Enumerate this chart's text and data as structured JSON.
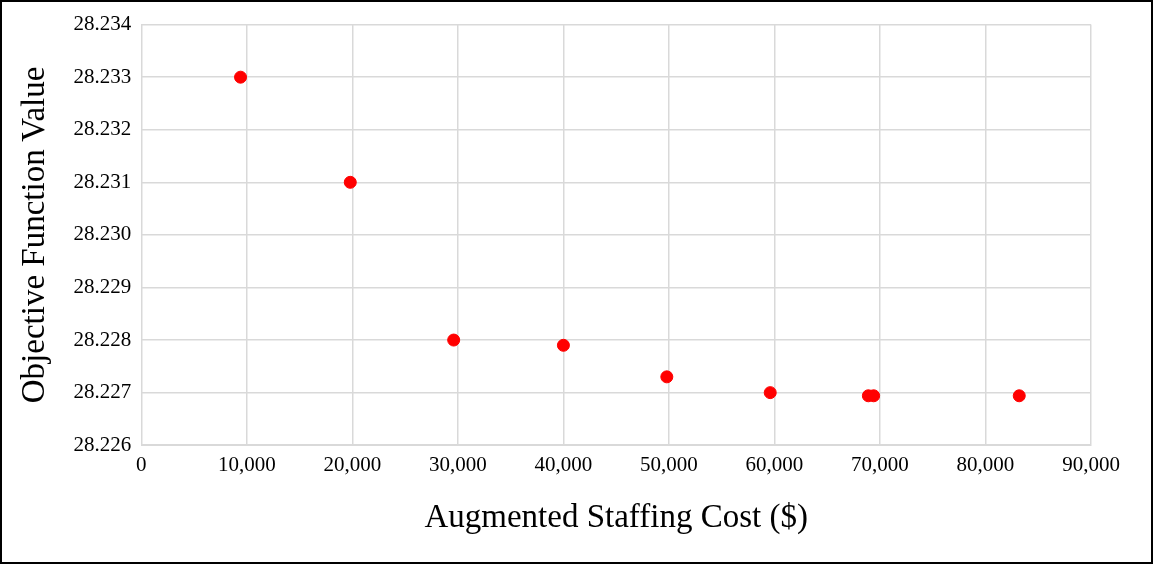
{
  "chart_data": {
    "type": "scatter",
    "xlabel": "Augmented Staffing Cost ($)",
    "ylabel": "Objective Function Value",
    "series": [
      {
        "color": "#ff0000",
        "x": [
          9400,
          19800,
          29600,
          40000,
          49800,
          59600,
          68900,
          69400,
          83200
        ],
        "values": [
          28.233,
          28.231,
          28.228,
          28.2279,
          28.2273,
          28.227,
          28.22694,
          28.22694,
          28.22694
        ]
      }
    ],
    "xlim": [
      0,
      90000
    ],
    "xticks": [
      {
        "value": 0,
        "label": "0"
      },
      {
        "value": 10000,
        "label": "10,000"
      },
      {
        "value": 20000,
        "label": "20,000"
      },
      {
        "value": 30000,
        "label": "30,000"
      },
      {
        "value": 40000,
        "label": "40,000"
      },
      {
        "value": 50000,
        "label": "50,000"
      },
      {
        "value": 60000,
        "label": "60,000"
      },
      {
        "value": 70000,
        "label": "70,000"
      },
      {
        "value": 80000,
        "label": "80,000"
      },
      {
        "value": 90000,
        "label": "90,000"
      }
    ],
    "ylim": [
      28.226,
      28.234
    ],
    "yticks": [
      {
        "value": 28.226,
        "label": "28.226"
      },
      {
        "value": 28.227,
        "label": "28.227"
      },
      {
        "value": 28.228,
        "label": "28.228"
      },
      {
        "value": 28.229,
        "label": "28.229"
      },
      {
        "value": 28.23,
        "label": "28.230"
      },
      {
        "value": 28.231,
        "label": "28.231"
      },
      {
        "value": 28.232,
        "label": "28.232"
      },
      {
        "value": 28.233,
        "label": "28.233"
      },
      {
        "value": 28.234,
        "label": "28.234"
      }
    ],
    "grid": true,
    "legend": false,
    "marker": "circle"
  }
}
